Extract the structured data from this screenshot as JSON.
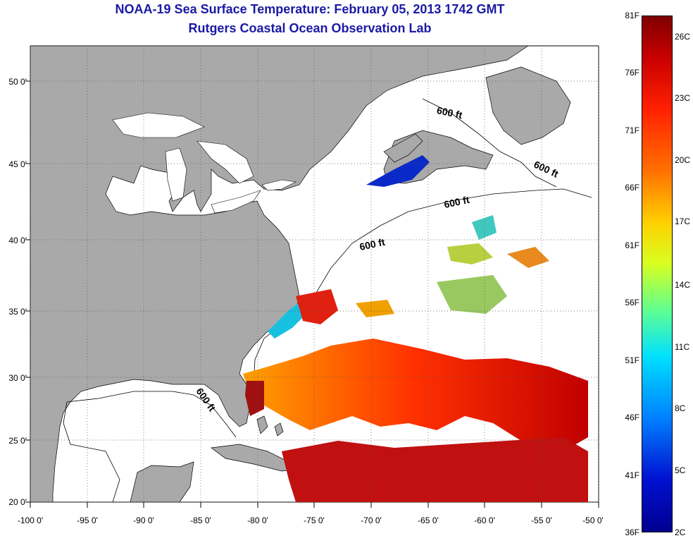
{
  "title": {
    "line1": "NOAA-19 Sea Surface Temperature:  February 05, 2013 1742 GMT",
    "line2": "Rutgers Coastal Ocean Observation Lab"
  },
  "axes": {
    "lat_labels": [
      "50 0'",
      "45 0'",
      "40 0'",
      "35 0'",
      "30 0'",
      "25 0'",
      "20 0'"
    ],
    "lon_labels": [
      "-100 0'",
      "-95 0'",
      "-90 0'",
      "-85 0'",
      "-80 0'",
      "-75 0'",
      "-70 0'",
      "-65 0'",
      "-60 0'",
      "-55 0'",
      "-50 0'"
    ]
  },
  "contour_labels": [
    "600 ft",
    "600 ft",
    "600 ft",
    "600 ft",
    "600 ft"
  ],
  "colorbar": {
    "fahrenheit": [
      "81F",
      "76F",
      "71F",
      "66F",
      "61F",
      "56F",
      "51F",
      "46F",
      "41F",
      "36F"
    ],
    "celsius": [
      "26C",
      "23C",
      "20C",
      "17C",
      "14C",
      "11C",
      "8C",
      "5C",
      "2C"
    ]
  },
  "colors": {
    "land": "#a9a9a9",
    "ocean": "#ffffff",
    "title": "#1a1aa6"
  }
}
